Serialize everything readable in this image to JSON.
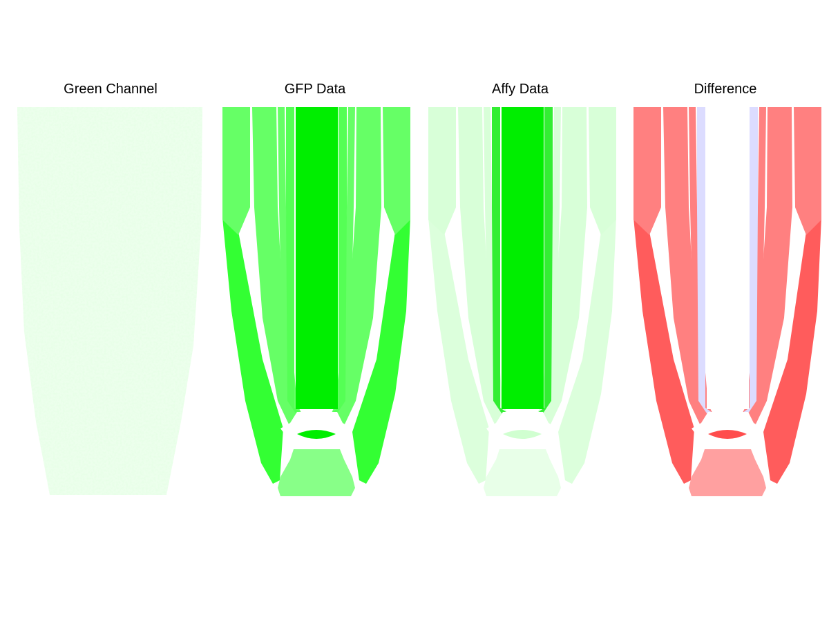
{
  "panels": [
    {
      "title": "Green Channel"
    },
    {
      "title": "GFP Data"
    },
    {
      "title": "Affy Data"
    },
    {
      "title": "Difference"
    }
  ],
  "colors": {
    "gfp": {
      "outer_upper": "#66ff66",
      "outer_lower": "#33ff33",
      "tissue_a": "#66ff66",
      "tissue_b": "#55ff55",
      "center": "#00ee00",
      "ring": "#00ee00",
      "cap": "#88ff88",
      "qc": "#ffffff"
    },
    "affy": {
      "outer_upper": "#d8ffd8",
      "outer_lower": "#dcffdc",
      "tissue_a": "#d8ffd8",
      "tissue_b": "#33ee33",
      "center": "#00ee00",
      "ring": "#d0ffd0",
      "cap": "#e8ffe8",
      "qc": "#ffffff"
    },
    "diff": {
      "outer_upper": "#ff8080",
      "outer_lower": "#ff5c5c",
      "tissue_a": "#ff8080",
      "tissue_b": "#dcdcff",
      "center": "#ffffff",
      "ring": "#ff4d4d",
      "cap": "#ffa0a0",
      "qc": "#ffffff"
    }
  }
}
